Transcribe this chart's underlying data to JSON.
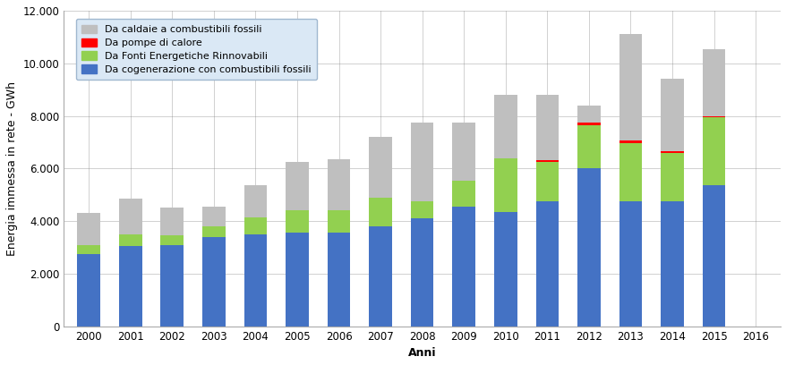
{
  "years": [
    2000,
    2001,
    2002,
    2003,
    2004,
    2005,
    2006,
    2007,
    2008,
    2009,
    2010,
    2011,
    2012,
    2013,
    2014,
    2015,
    2016
  ],
  "cogen_fossili": [
    2750,
    3050,
    3100,
    3400,
    3500,
    3550,
    3550,
    3800,
    4100,
    4550,
    4350,
    4750,
    6000,
    4750,
    4750,
    5350,
    0
  ],
  "fonti_rinnovabili": [
    350,
    450,
    350,
    400,
    650,
    850,
    850,
    1100,
    650,
    1000,
    2050,
    1500,
    1650,
    2200,
    1850,
    2600,
    0
  ],
  "pompe_calore": [
    0,
    0,
    0,
    0,
    0,
    0,
    0,
    0,
    0,
    0,
    0,
    50,
    80,
    100,
    50,
    30,
    0
  ],
  "caldaie_fossili": [
    1200,
    1350,
    1050,
    750,
    1200,
    1850,
    1950,
    2300,
    3000,
    2200,
    2400,
    2500,
    650,
    4050,
    2750,
    2550,
    0
  ],
  "colors": {
    "cogen_fossili": "#4472C4",
    "fonti_rinnovabili": "#92D050",
    "pompe_calore": "#FF0000",
    "caldaie_fossili": "#BFBFBF"
  },
  "legend_labels": [
    "Da caldaie a combustibili fossili",
    "Da pompe di calore",
    "Da Fonti Energetiche Rinnovabili",
    "Da cogenerazione con combustibili fossili"
  ],
  "ylabel": "Energia immessa in rete - GWh",
  "xlabel": "Anni",
  "ylim": [
    0,
    12000
  ],
  "yticks": [
    0,
    2000,
    4000,
    6000,
    8000,
    10000,
    12000
  ],
  "ytick_labels": [
    "0",
    "2.000",
    "4.000",
    "6.000",
    "8.000",
    "10.000",
    "12.000"
  ],
  "legend_fontsize": 8.0,
  "axis_fontsize": 9,
  "tick_fontsize": 8.5,
  "background_color": "#FFFFFF",
  "legend_bg_color": "#DAE8F5"
}
